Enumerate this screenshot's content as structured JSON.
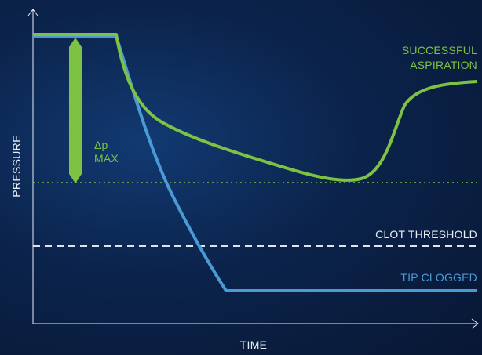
{
  "labels": {
    "y_axis": "PRESSURE",
    "x_axis": "TIME",
    "successful_line1": "SUCCESSFUL",
    "successful_line2": "ASPIRATION",
    "clot_threshold": "CLOT THRESHOLD",
    "tip_clogged": "TIP CLOGGED",
    "delta_p": "Δp",
    "max": "MAX"
  },
  "colors": {
    "background": "#0b234b",
    "green": "#7dc242",
    "blue": "#4a9ad4",
    "white": "#e8edf5",
    "dashed": "#e0e4ea"
  }
}
